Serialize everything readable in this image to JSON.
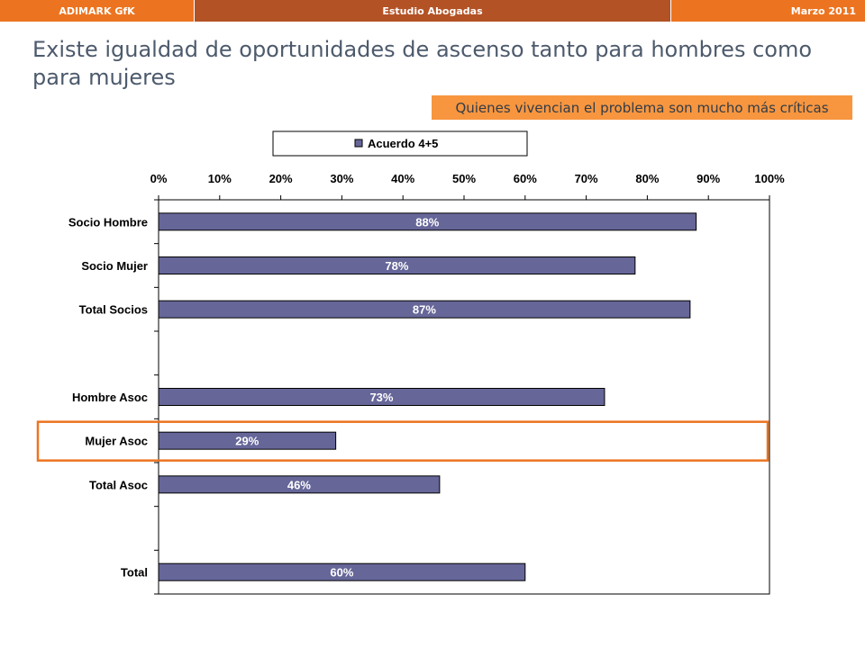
{
  "header": {
    "left": "ADIMARK GfK",
    "center": "Estudio Abogadas",
    "right": "Marzo 2011"
  },
  "slide": {
    "title": "Existe igualdad de oportunidades de ascenso tanto para hombres como para mujeres",
    "callout": "Quienes vivencian el problema son mucho más críticas"
  },
  "colors": {
    "header_orange": "#ec7420",
    "header_dark": "#b35225",
    "callout_bg": "#f7963f",
    "bar_fill": "#666699",
    "highlight_border": "#ec7420"
  },
  "chart_data": {
    "type": "bar",
    "orientation": "horizontal",
    "categories": [
      "Socio Hombre",
      "Socio Mujer",
      "Total Socios",
      "",
      "Hombre Asoc",
      "Mujer Asoc",
      "Total Asoc",
      "",
      "Total"
    ],
    "series": [
      {
        "name": "Acuerdo 4+5",
        "values": [
          88,
          78,
          87,
          null,
          73,
          29,
          46,
          null,
          60
        ]
      }
    ],
    "data_labels": [
      "88%",
      "78%",
      "87%",
      "",
      "73%",
      "29%",
      "46%",
      "",
      "60%"
    ],
    "x_ticks": [
      "0%",
      "10%",
      "20%",
      "30%",
      "40%",
      "50%",
      "60%",
      "70%",
      "80%",
      "90%",
      "100%"
    ],
    "xlim": [
      0,
      100
    ],
    "x_axis_position": "top",
    "grid": false,
    "legend": "top",
    "highlighted_category": "Mujer Asoc"
  }
}
